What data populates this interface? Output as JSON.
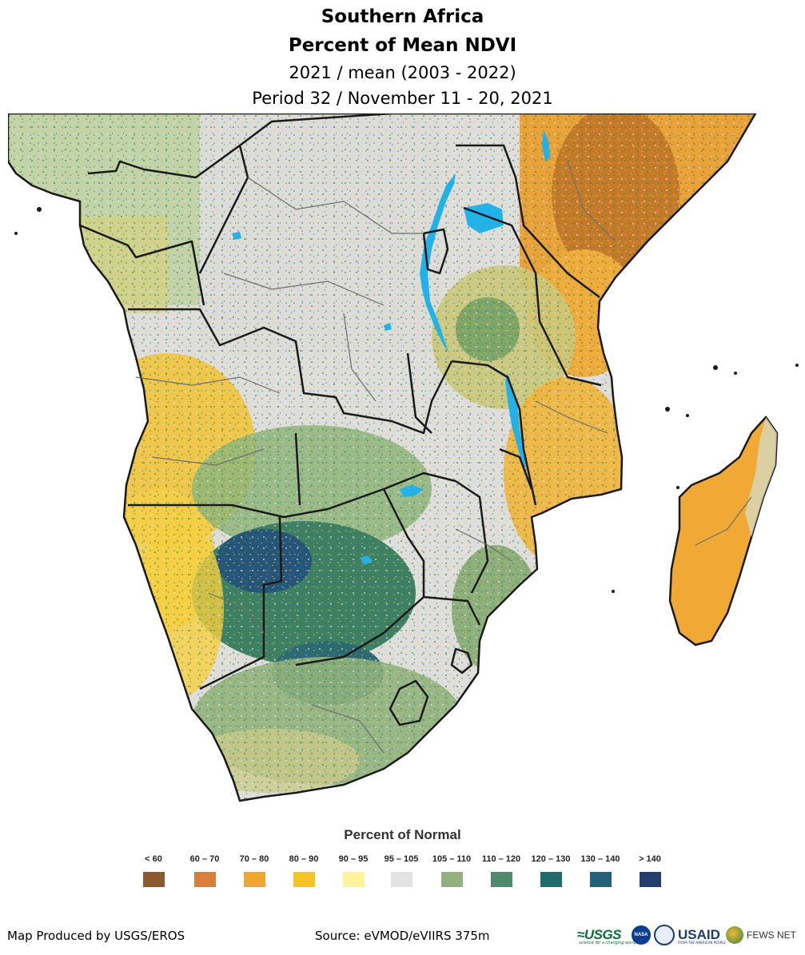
{
  "titles": {
    "region": "Southern Africa",
    "product": "Percent of Mean NDVI",
    "comparison": "2021 / mean (2003 - 2022)",
    "period": "Period 32 / November 11 - 20, 2021"
  },
  "legend": {
    "title": "Percent of Normal",
    "classes": [
      {
        "label": "< 60",
        "color": "#8c5a2e"
      },
      {
        "label": "60 – 70",
        "color": "#d87f3a"
      },
      {
        "label": "70 – 80",
        "color": "#efa72f"
      },
      {
        "label": "80 – 90",
        "color": "#f6c425"
      },
      {
        "label": "90 – 95",
        "color": "#fdf39b"
      },
      {
        "label": "95 – 105",
        "color": "#e3e3e3"
      },
      {
        "label": "105 – 110",
        "color": "#93b17f"
      },
      {
        "label": "110 – 120",
        "color": "#4e8a6b"
      },
      {
        "label": "120 – 130",
        "color": "#1f6b6e"
      },
      {
        "label": "130 – 140",
        "color": "#24607a"
      },
      {
        "label": "> 140",
        "color": "#243f6b"
      }
    ]
  },
  "map_colors": {
    "ocean": "#ffffff",
    "lake": "#22b2e8",
    "country_border": "#1a1a1a",
    "admin_border": "#6e6e6e"
  },
  "credits": {
    "producer": "Map Produced by USGS/EROS",
    "source": "Source: eVMOD/eVIIRS 375m"
  },
  "logos": {
    "usgs": "≈USGS",
    "usgs_tagline": "science for a changing world",
    "nasa": "NASA",
    "usaid": "USAID",
    "usaid_tagline": "FROM THE AMERICAN PEOPLE",
    "fews": "FEWS NET"
  }
}
